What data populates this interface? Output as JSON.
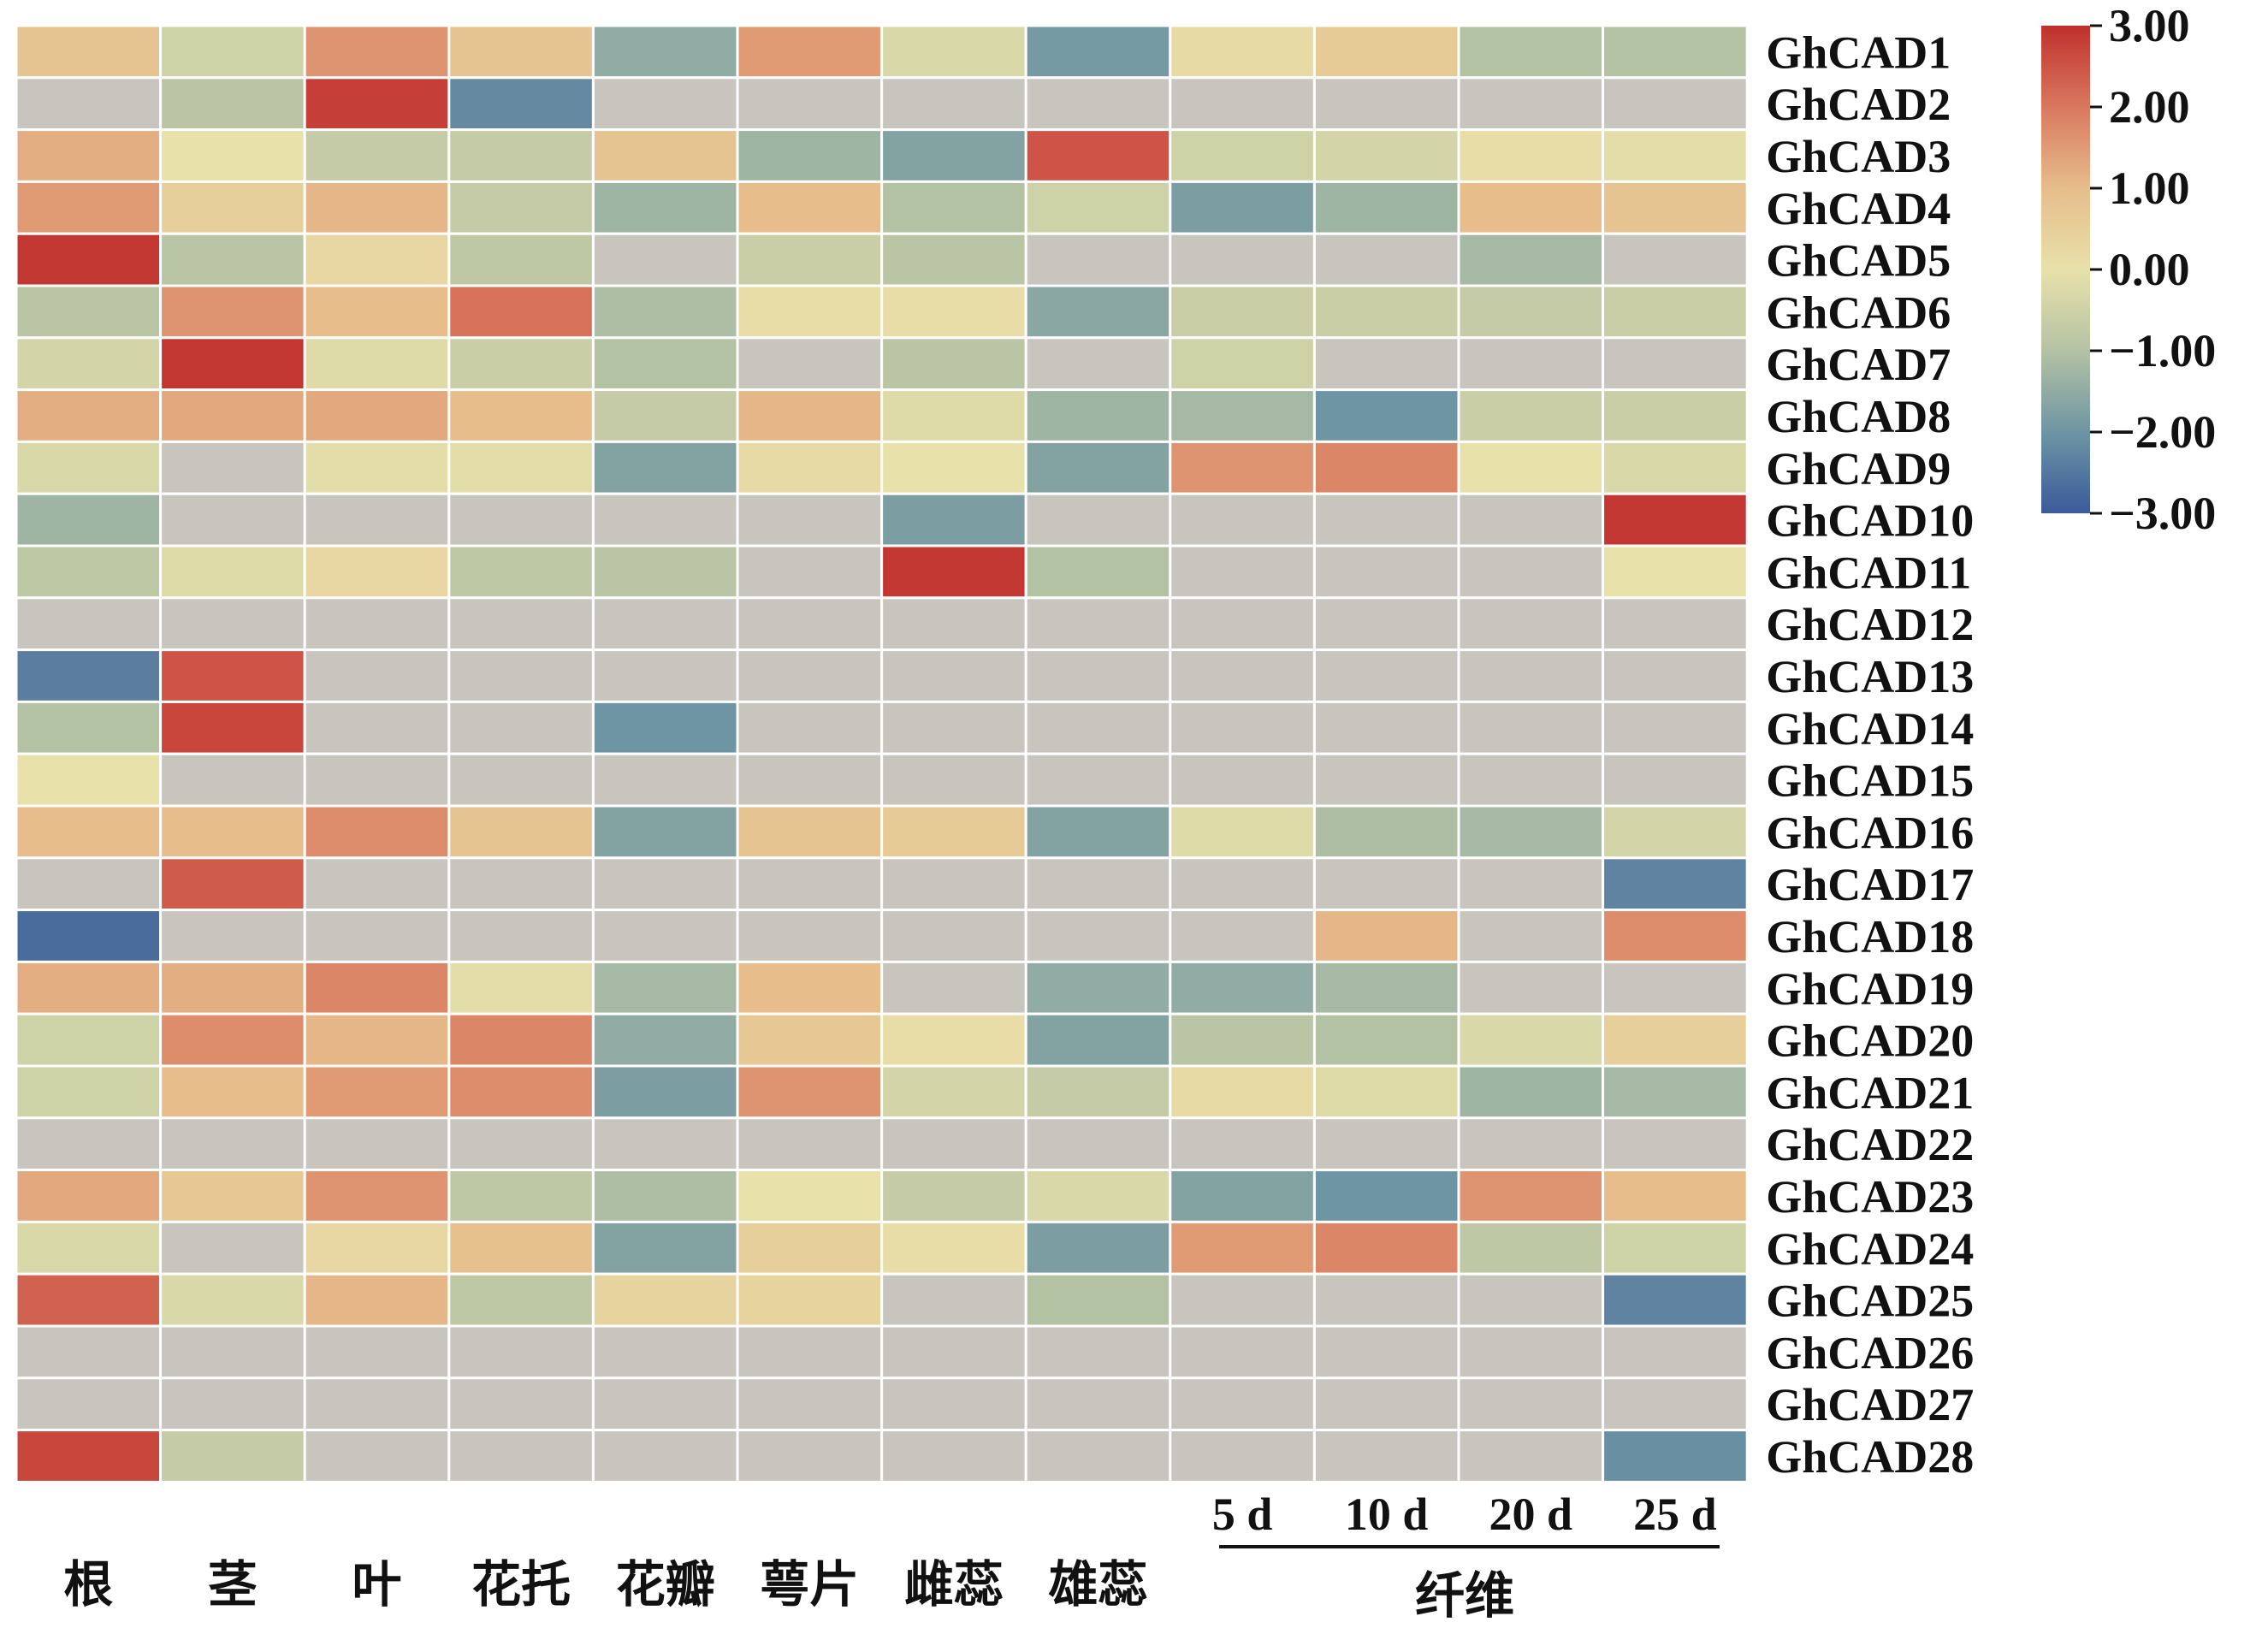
{
  "chart_data": {
    "type": "heatmap",
    "rows": [
      "GhCAD1",
      "GhCAD2",
      "GhCAD3",
      "GhCAD4",
      "GhCAD5",
      "GhCAD6",
      "GhCAD7",
      "GhCAD8",
      "GhCAD9",
      "GhCAD10",
      "GhCAD11",
      "GhCAD12",
      "GhCAD13",
      "GhCAD14",
      "GhCAD15",
      "GhCAD16",
      "GhCAD17",
      "GhCAD18",
      "GhCAD19",
      "GhCAD20",
      "GhCAD21",
      "GhCAD22",
      "GhCAD23",
      "GhCAD24",
      "GhCAD25",
      "GhCAD26",
      "GhCAD27",
      "GhCAD28"
    ],
    "columns": [
      "根",
      "茎",
      "叶",
      "花托",
      "花瓣",
      "萼片",
      "雌蕊",
      "雄蕊",
      "5 d",
      "10 d",
      "20 d",
      "25 d"
    ],
    "column_group": {
      "label": "纤维",
      "columns": [
        "5 d",
        "10 d",
        "20 d",
        "25 d"
      ]
    },
    "missing_color": "#c8c4be",
    "values": [
      [
        0.8,
        -0.5,
        1.6,
        0.8,
        -1.5,
        1.5,
        -0.3,
        -1.9,
        0.2,
        0.6,
        -1.0,
        -1.0
      ],
      [
        null,
        -0.9,
        2.8,
        -2.2,
        null,
        null,
        null,
        null,
        null,
        null,
        null,
        null
      ],
      [
        1.2,
        0.0,
        -0.7,
        -0.7,
        0.8,
        -1.3,
        -1.7,
        2.5,
        -0.5,
        -0.4,
        0.1,
        -0.1
      ],
      [
        1.5,
        0.5,
        1.1,
        -0.7,
        -1.3,
        1.0,
        -1.0,
        -0.5,
        -1.8,
        -1.3,
        1.0,
        0.8
      ],
      [
        2.9,
        -0.9,
        0.3,
        -0.8,
        null,
        -0.6,
        -0.9,
        null,
        null,
        null,
        -1.2,
        null
      ],
      [
        -0.9,
        1.6,
        1.0,
        2.1,
        -1.1,
        0.1,
        0.1,
        -1.6,
        -0.6,
        -0.6,
        -0.7,
        -0.6
      ],
      [
        -0.4,
        2.9,
        -0.2,
        -0.6,
        -1.0,
        null,
        -0.9,
        null,
        -0.5,
        null,
        null,
        null
      ],
      [
        1.2,
        1.3,
        1.3,
        1.0,
        -0.7,
        1.1,
        -0.2,
        -1.3,
        -1.2,
        -2.0,
        -0.6,
        -0.6
      ],
      [
        -0.3,
        null,
        -0.1,
        -0.1,
        -1.7,
        0.2,
        0.0,
        -1.7,
        1.6,
        1.8,
        0.0,
        -0.3
      ],
      [
        -1.3,
        null,
        null,
        null,
        null,
        null,
        -1.8,
        null,
        null,
        null,
        null,
        2.9
      ],
      [
        -0.8,
        -0.2,
        0.3,
        -0.8,
        -0.9,
        null,
        2.9,
        -1.0,
        null,
        null,
        null,
        0.0
      ],
      [
        null,
        null,
        null,
        null,
        null,
        null,
        null,
        null,
        null,
        null,
        null,
        null
      ],
      [
        -2.4,
        2.5,
        null,
        null,
        null,
        null,
        null,
        null,
        null,
        null,
        null,
        null
      ],
      [
        -1.0,
        2.7,
        null,
        null,
        -2.0,
        null,
        null,
        null,
        null,
        null,
        null,
        null
      ],
      [
        0.0,
        null,
        null,
        null,
        null,
        null,
        null,
        null,
        null,
        null,
        null,
        null
      ],
      [
        1.0,
        1.0,
        1.7,
        0.8,
        -1.7,
        0.8,
        0.6,
        -1.7,
        -0.2,
        -1.1,
        -1.2,
        -0.4
      ],
      [
        null,
        2.4,
        null,
        null,
        null,
        null,
        null,
        null,
        null,
        null,
        null,
        -2.3
      ],
      [
        -2.7,
        null,
        null,
        null,
        null,
        null,
        null,
        null,
        null,
        1.1,
        null,
        1.7
      ],
      [
        1.2,
        1.2,
        1.8,
        -0.1,
        -1.2,
        1.0,
        null,
        -1.5,
        -1.5,
        -1.2,
        null,
        null
      ],
      [
        -0.5,
        1.7,
        1.1,
        1.8,
        -1.5,
        0.7,
        0.1,
        -1.7,
        -0.9,
        -1.0,
        -0.3,
        0.5
      ],
      [
        -0.5,
        1.0,
        1.5,
        1.7,
        -1.8,
        1.6,
        -0.4,
        -0.7,
        0.2,
        -0.2,
        -1.3,
        -1.2
      ],
      [
        null,
        null,
        null,
        null,
        null,
        null,
        null,
        null,
        null,
        null,
        null,
        null
      ],
      [
        1.3,
        0.7,
        1.6,
        -0.8,
        -1.1,
        0.0,
        -0.7,
        -0.3,
        -1.7,
        -2.0,
        1.6,
        1.0
      ],
      [
        -0.3,
        null,
        0.3,
        0.9,
        -1.7,
        0.5,
        0.1,
        -1.8,
        1.5,
        1.8,
        -0.8,
        -0.5
      ],
      [
        2.3,
        -0.3,
        1.1,
        -0.8,
        0.4,
        0.4,
        null,
        -1.0,
        null,
        null,
        null,
        -2.3
      ],
      [
        null,
        null,
        null,
        null,
        null,
        null,
        null,
        null,
        null,
        null,
        null,
        null
      ],
      [
        null,
        null,
        null,
        null,
        null,
        null,
        null,
        null,
        null,
        null,
        null,
        null
      ],
      [
        2.7,
        -0.7,
        null,
        null,
        null,
        null,
        null,
        null,
        null,
        null,
        null,
        -2.1
      ]
    ],
    "colorbar": {
      "min": -3.0,
      "max": 3.0,
      "ticks": [
        "3.00",
        "2.00",
        "1.00",
        "0.00",
        "−1.00",
        "−2.00",
        "−3.00"
      ],
      "colors": [
        "#3b5a9b",
        "#6e95a3",
        "#b4c2a4",
        "#e8e1aa",
        "#e6bd8b",
        "#d9785f",
        "#c0302d"
      ]
    }
  }
}
